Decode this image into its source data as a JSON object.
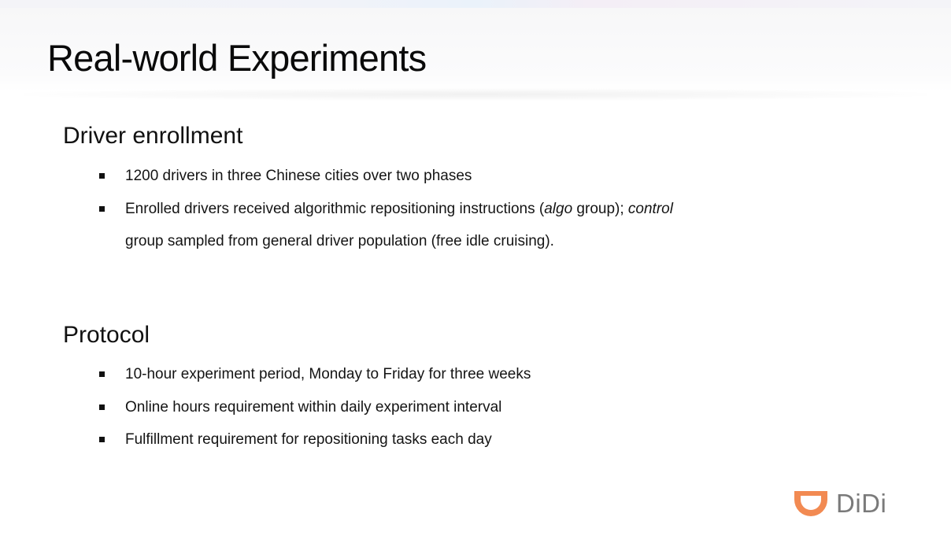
{
  "slide": {
    "title": "Real-world Experiments"
  },
  "sections": [
    {
      "heading": "Driver enrollment",
      "bullets": [
        {
          "text": "1200 drivers in three Chinese cities over two phases"
        },
        {
          "line1_pre": "Enrolled drivers received algorithmic repositioning instructions (",
          "line1_em1": "algo",
          "line1_mid": " group); ",
          "line1_em2": "control",
          "line2": "group sampled from general driver population (free idle cruising)."
        }
      ]
    },
    {
      "heading": "Protocol",
      "bullets": [
        {
          "text": "10-hour experiment period, Monday to Friday for three weeks"
        },
        {
          "text": "Online hours requirement within daily experiment interval"
        },
        {
          "text": "Fulfillment requirement for repositioning tasks each day"
        }
      ]
    }
  ],
  "brand": {
    "name": "DiDi",
    "logo_icon": "didi-logo-icon",
    "accent_color": "#f28a52"
  }
}
